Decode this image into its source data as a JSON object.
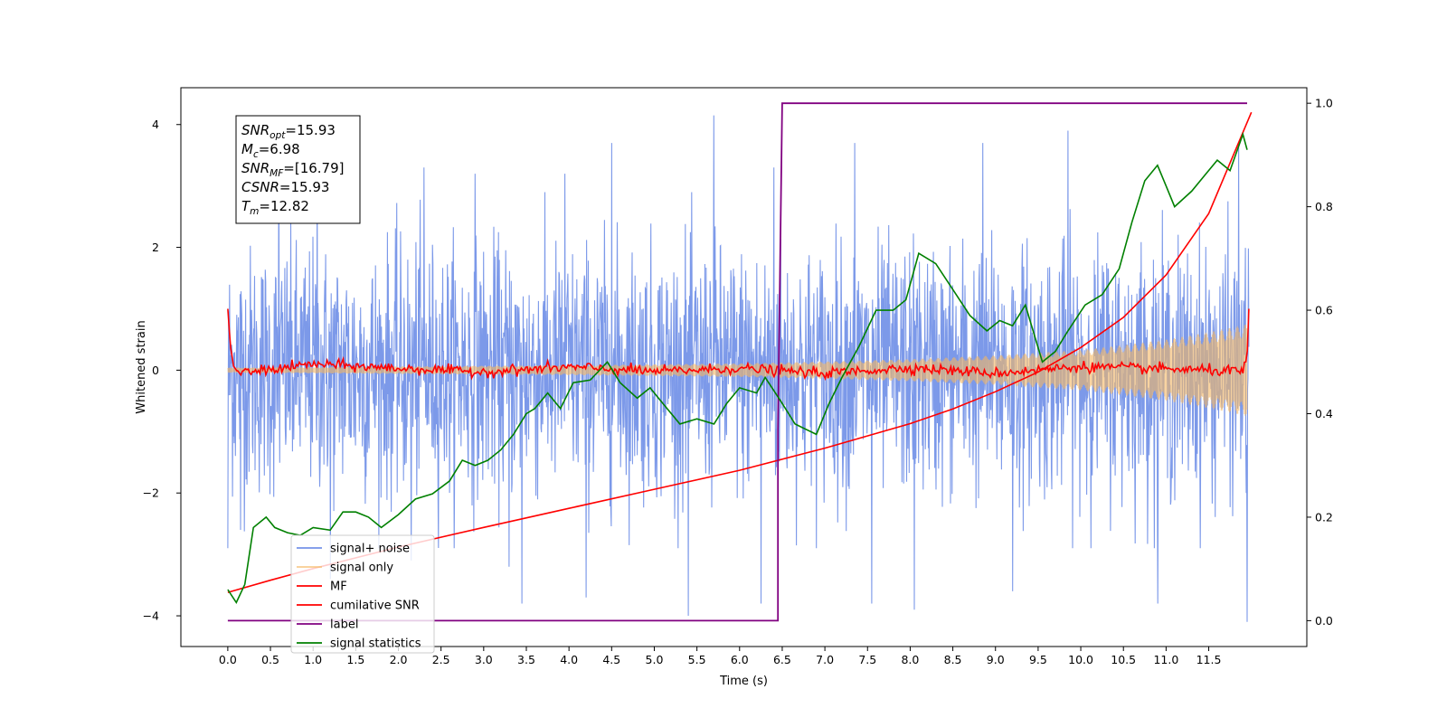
{
  "chart_data": {
    "type": "line",
    "xlabel": "Time (s)",
    "ylabel": "Whitened strain",
    "xlim": [
      -0.55,
      12.65
    ],
    "ylim": [
      -4.5,
      4.6
    ],
    "y2lim": [
      -0.05,
      1.03
    ],
    "x_ticks": [
      0.0,
      0.5,
      1.0,
      1.5,
      2.0,
      2.5,
      3.0,
      3.5,
      4.0,
      4.5,
      5.0,
      5.5,
      6.0,
      6.5,
      7.0,
      7.5,
      8.0,
      8.5,
      9.0,
      9.5,
      10.0,
      10.5,
      11.0,
      11.5
    ],
    "x_tick_labels": [
      "0.0",
      "0.5",
      "1.0",
      "1.5",
      "2.0",
      "2.5",
      "3.0",
      "3.5",
      "4.0",
      "4.5",
      "5.0",
      "5.5",
      "6.0",
      "6.5",
      "7.0",
      "7.5",
      "8.0",
      "8.5",
      "9.0",
      "9.5",
      "10.0",
      "10.5",
      "11.0",
      "11.5"
    ],
    "y_ticks": [
      -4,
      -2,
      0,
      2,
      4
    ],
    "y_tick_labels": [
      "−4",
      "−2",
      "0",
      "2",
      "4"
    ],
    "y2_ticks": [
      0.0,
      0.2,
      0.4,
      0.6,
      0.8,
      1.0
    ],
    "y2_tick_labels": [
      "0.0",
      "0.2",
      "0.4",
      "0.6",
      "0.8",
      "1.0"
    ],
    "grid": false,
    "legend_position": "lower-left",
    "annotation": {
      "lines": [
        {
          "base": "SNR",
          "sub": "opt",
          "value": "=15.93"
        },
        {
          "base": "M",
          "sub": "c",
          "value": "=6.98"
        },
        {
          "base": "SNR",
          "sub": "MF",
          "value": "=[16.79]"
        },
        {
          "base": "CSNR",
          "sub": "",
          "value": "=15.93"
        },
        {
          "base": "T",
          "sub": "m",
          "value": "=12.82"
        }
      ]
    },
    "series": [
      {
        "name": "signal+ noise",
        "axis": "left",
        "color": "#7593e8",
        "noise_envelope": {
          "typical_amplitude": 2.2,
          "max": 4.15,
          "min": -4.1
        },
        "peaks": [
          {
            "x": 0.0,
            "y": 2.1
          },
          {
            "x": 0.6,
            "y": 3.7
          },
          {
            "x": 1.05,
            "y": 3.3
          },
          {
            "x": 2.3,
            "y": 3.3
          },
          {
            "x": 2.9,
            "y": 3.2
          },
          {
            "x": 3.95,
            "y": 3.2
          },
          {
            "x": 4.5,
            "y": 3.7
          },
          {
            "x": 5.7,
            "y": 4.15
          },
          {
            "x": 6.4,
            "y": 3.3
          },
          {
            "x": 7.35,
            "y": 3.7
          },
          {
            "x": 8.85,
            "y": 3.7
          },
          {
            "x": 9.85,
            "y": 3.9
          },
          {
            "x": 11.85,
            "y": 3.7
          },
          {
            "x": 11.95,
            "y": 3.6
          }
        ],
        "troughs": [
          {
            "x": 0.0,
            "y": -2.9
          },
          {
            "x": 0.15,
            "y": -2.6
          },
          {
            "x": 1.2,
            "y": -3.4
          },
          {
            "x": 2.15,
            "y": -3.1
          },
          {
            "x": 3.3,
            "y": -3.2
          },
          {
            "x": 3.45,
            "y": -3.8
          },
          {
            "x": 4.2,
            "y": -3.7
          },
          {
            "x": 5.4,
            "y": -4.0
          },
          {
            "x": 6.25,
            "y": -3.8
          },
          {
            "x": 7.55,
            "y": -3.8
          },
          {
            "x": 8.05,
            "y": -3.9
          },
          {
            "x": 9.2,
            "y": -3.6
          },
          {
            "x": 10.9,
            "y": -3.8
          },
          {
            "x": 11.95,
            "y": -4.1
          }
        ]
      },
      {
        "name": "signal only",
        "axis": "left",
        "color": "#f5b862",
        "envelope": [
          [
            0.0,
            0.04
          ],
          [
            2.0,
            0.06
          ],
          [
            4.0,
            0.08
          ],
          [
            6.0,
            0.11
          ],
          [
            7.0,
            0.14
          ],
          [
            8.0,
            0.18
          ],
          [
            9.0,
            0.24
          ],
          [
            10.0,
            0.33
          ],
          [
            10.5,
            0.41
          ],
          [
            11.0,
            0.5
          ],
          [
            11.5,
            0.62
          ],
          [
            11.95,
            0.75
          ]
        ]
      },
      {
        "name": "MF",
        "axis": "left",
        "color": "#ff0000",
        "points": [
          [
            0.0,
            1.0
          ],
          [
            0.03,
            0.4
          ],
          [
            0.07,
            0.05
          ],
          [
            0.15,
            -0.05
          ],
          [
            1.0,
            0.1
          ],
          [
            2.0,
            0.03
          ],
          [
            3.0,
            -0.03
          ],
          [
            4.0,
            0.05
          ],
          [
            5.0,
            -0.02
          ],
          [
            6.0,
            0.03
          ],
          [
            7.0,
            -0.05
          ],
          [
            8.0,
            0.04
          ],
          [
            9.0,
            -0.05
          ],
          [
            10.0,
            0.06
          ],
          [
            11.0,
            0.02
          ],
          [
            11.9,
            -0.02
          ],
          [
            11.95,
            0.2
          ],
          [
            11.97,
            1.0
          ]
        ],
        "fluctuation_amplitude": 0.06
      },
      {
        "name": "cumilative SNR",
        "axis": "left",
        "color": "#ff0000",
        "points": [
          [
            0.0,
            -3.62
          ],
          [
            0.5,
            -3.42
          ],
          [
            1.0,
            -3.23
          ],
          [
            2.0,
            -2.88
          ],
          [
            3.0,
            -2.56
          ],
          [
            4.0,
            -2.25
          ],
          [
            5.0,
            -1.94
          ],
          [
            6.0,
            -1.63
          ],
          [
            7.0,
            -1.27
          ],
          [
            8.0,
            -0.87
          ],
          [
            8.5,
            -0.63
          ],
          [
            9.0,
            -0.35
          ],
          [
            9.5,
            -0.03
          ],
          [
            10.0,
            0.37
          ],
          [
            10.5,
            0.86
          ],
          [
            11.0,
            1.55
          ],
          [
            11.5,
            2.55
          ],
          [
            12.0,
            4.2
          ]
        ]
      },
      {
        "name": "label",
        "axis": "right",
        "color": "#800080",
        "points": [
          [
            0.0,
            0.0
          ],
          [
            6.45,
            0.0
          ],
          [
            6.45,
            0.37
          ],
          [
            6.5,
            1.0
          ],
          [
            11.95,
            1.0
          ]
        ]
      },
      {
        "name": "signal statistics",
        "axis": "right",
        "color": "#008000",
        "points": [
          [
            0.0,
            0.06
          ],
          [
            0.1,
            0.035
          ],
          [
            0.2,
            0.07
          ],
          [
            0.3,
            0.18
          ],
          [
            0.45,
            0.2
          ],
          [
            0.55,
            0.18
          ],
          [
            0.7,
            0.17
          ],
          [
            0.85,
            0.165
          ],
          [
            1.0,
            0.18
          ],
          [
            1.2,
            0.175
          ],
          [
            1.35,
            0.21
          ],
          [
            1.5,
            0.21
          ],
          [
            1.65,
            0.2
          ],
          [
            1.8,
            0.18
          ],
          [
            2.0,
            0.205
          ],
          [
            2.2,
            0.235
          ],
          [
            2.4,
            0.245
          ],
          [
            2.6,
            0.27
          ],
          [
            2.75,
            0.31
          ],
          [
            2.9,
            0.3
          ],
          [
            3.05,
            0.31
          ],
          [
            3.2,
            0.33
          ],
          [
            3.35,
            0.36
          ],
          [
            3.5,
            0.4
          ],
          [
            3.6,
            0.41
          ],
          [
            3.75,
            0.44
          ],
          [
            3.9,
            0.41
          ],
          [
            4.05,
            0.46
          ],
          [
            4.25,
            0.465
          ],
          [
            4.45,
            0.5
          ],
          [
            4.6,
            0.46
          ],
          [
            4.8,
            0.43
          ],
          [
            4.95,
            0.45
          ],
          [
            5.1,
            0.42
          ],
          [
            5.3,
            0.38
          ],
          [
            5.5,
            0.39
          ],
          [
            5.7,
            0.38
          ],
          [
            5.85,
            0.42
          ],
          [
            6.0,
            0.45
          ],
          [
            6.2,
            0.44
          ],
          [
            6.3,
            0.47
          ],
          [
            6.5,
            0.42
          ],
          [
            6.65,
            0.38
          ],
          [
            6.9,
            0.36
          ],
          [
            7.05,
            0.42
          ],
          [
            7.2,
            0.47
          ],
          [
            7.4,
            0.53
          ],
          [
            7.6,
            0.6
          ],
          [
            7.8,
            0.6
          ],
          [
            7.95,
            0.62
          ],
          [
            8.1,
            0.71
          ],
          [
            8.3,
            0.69
          ],
          [
            8.5,
            0.64
          ],
          [
            8.7,
            0.59
          ],
          [
            8.9,
            0.56
          ],
          [
            9.05,
            0.58
          ],
          [
            9.2,
            0.57
          ],
          [
            9.35,
            0.61
          ],
          [
            9.55,
            0.5
          ],
          [
            9.7,
            0.52
          ],
          [
            9.85,
            0.56
          ],
          [
            10.05,
            0.61
          ],
          [
            10.25,
            0.63
          ],
          [
            10.45,
            0.68
          ],
          [
            10.6,
            0.77
          ],
          [
            10.75,
            0.85
          ],
          [
            10.9,
            0.88
          ],
          [
            11.0,
            0.84
          ],
          [
            11.1,
            0.8
          ],
          [
            11.3,
            0.83
          ],
          [
            11.45,
            0.86
          ],
          [
            11.6,
            0.89
          ],
          [
            11.75,
            0.87
          ],
          [
            11.9,
            0.94
          ],
          [
            11.95,
            0.91
          ]
        ]
      }
    ]
  }
}
